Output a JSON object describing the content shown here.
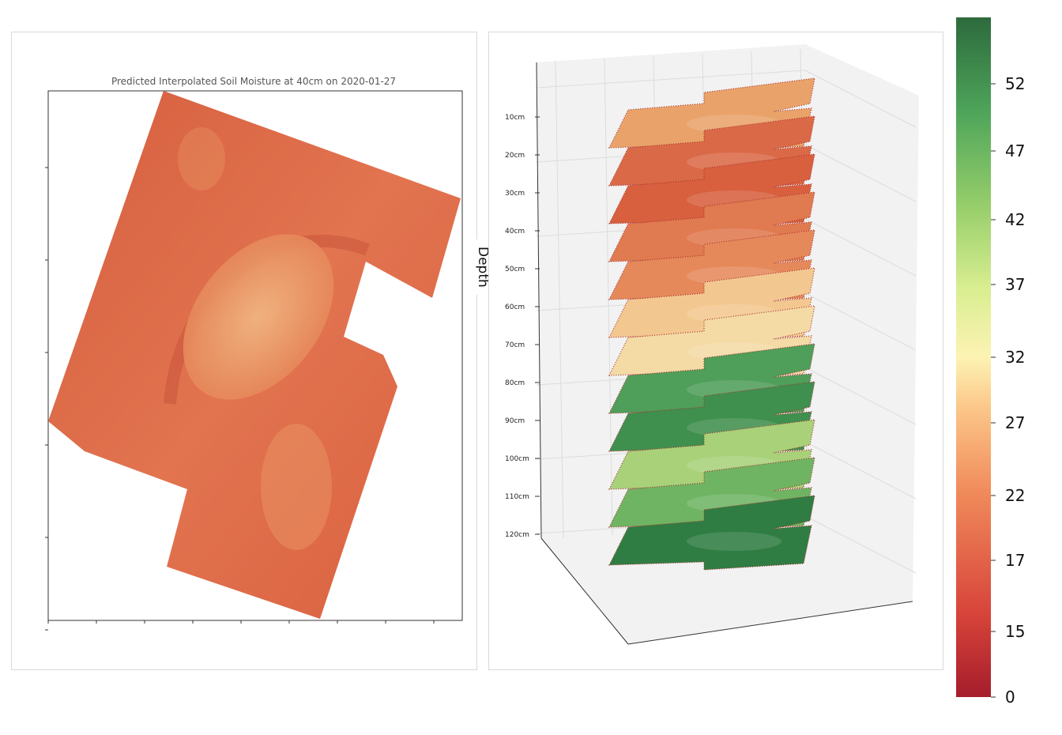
{
  "chart_data": [
    {
      "type": "heatmap",
      "title": "Predicted Interpolated Soil Moisture at 40cm on 2020-01-27",
      "xlabel": "",
      "ylabel": "",
      "colormap": "RdYlGn",
      "dominant_color": "#e0734f"
    },
    {
      "type": "heatmap",
      "title": "",
      "axis_label": "Depth",
      "depth_levels": [
        "10cm",
        "20cm",
        "30cm",
        "40cm",
        "50cm",
        "60cm",
        "70cm",
        "80cm",
        "90cm",
        "100cm",
        "110cm",
        "120cm"
      ],
      "layer_colors": [
        "#e9a36a",
        "#da6a47",
        "#d8603f",
        "#e07a50",
        "#e5895b",
        "#f3c890",
        "#f4dba6",
        "#4f9e5a",
        "#3f8f4e",
        "#a8d17a",
        "#6fb463",
        "#2f7d43"
      ],
      "colorbar": {
        "ticks": [
          "52",
          "47",
          "42",
          "37",
          "32",
          "27",
          "22",
          "17",
          "15",
          "0"
        ],
        "colors": [
          "#a51d2c",
          "#d7433a",
          "#f08a5a",
          "#fbc486",
          "#fdf3b3",
          "#d9ee91",
          "#98cf6b",
          "#4ea55a",
          "#2d6a3d"
        ]
      }
    }
  ]
}
